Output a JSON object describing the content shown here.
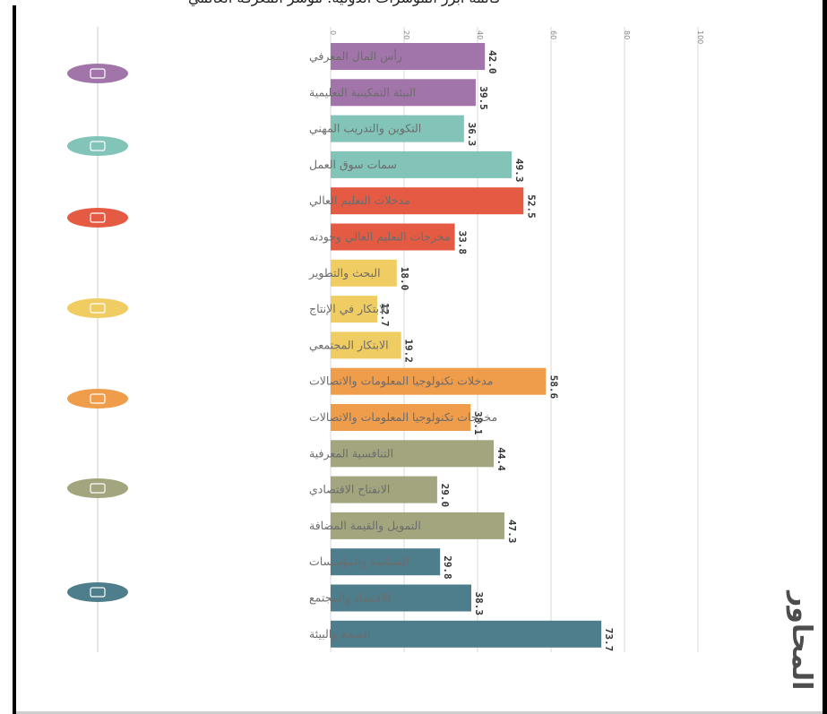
{
  "page": {
    "section_title": "المحاور",
    "cropped_heading": "قائمة أبرز المؤشرات الدولية: مؤشر المعرفة العالمي"
  },
  "colors": {
    "purple": "#a275aa",
    "teal": "#82c4b7",
    "red": "#e45a43",
    "yellow": "#f0cd62",
    "orange": "#ef9c4b",
    "olive": "#a3a57f",
    "steel": "#4e7e8c",
    "grid": "#d8d8d8",
    "axis": "#cccccc"
  },
  "chart_data": {
    "type": "bar",
    "orientation": "horizontal",
    "xlim": [
      0,
      100
    ],
    "ticks": [
      0,
      20,
      40,
      60,
      80,
      100
    ],
    "grid": true,
    "categories": [
      "رأس المال المعرفي",
      "البيئة التمكينية التعليمية",
      "التكوين والتدريب المهني",
      "سمات سوق العمل",
      "مدخلات التعليم العالي",
      "مخرجات التعليم العالي وجودته",
      "البحث والتطوير",
      "الابتكار في الإنتاج",
      "الابتكار المجتمعي",
      "مدخلات تكنولوجيا المعلومات والاتصالات",
      "مخرجات تكنولوجيا المعلومات والاتصالات",
      "التنافسية المعرفية",
      "الانفتاح الاقتصادي",
      "التمويل والقيمة المضافة",
      "السياسة والمؤسسات",
      "الاقتصاد والمجتمع",
      "الصحة والبيئة"
    ],
    "values": [
      42.0,
      39.5,
      36.3,
      49.3,
      52.5,
      33.8,
      18.0,
      12.7,
      19.2,
      58.6,
      38.1,
      44.4,
      29.0,
      47.3,
      29.8,
      38.3,
      73.7
    ],
    "value_labels": [
      "42.0",
      "39.5",
      "36.3",
      "49.3",
      "52.5",
      "33.8",
      "18.0",
      "12.7",
      "19.2",
      "58.6",
      "38.1",
      "44.4",
      "29.0",
      "47.3",
      "29.8",
      "38.3",
      "73.7"
    ],
    "bar_colors": [
      "purple",
      "purple",
      "teal",
      "teal",
      "red",
      "red",
      "yellow",
      "yellow",
      "yellow",
      "orange",
      "orange",
      "olive",
      "olive",
      "olive",
      "steel",
      "steel",
      "steel"
    ],
    "pillar_icons": [
      {
        "color": "purple",
        "icon": "book-icon"
      },
      {
        "color": "teal",
        "icon": "briefcase-icon"
      },
      {
        "color": "red",
        "icon": "graduation-icon"
      },
      {
        "color": "yellow",
        "icon": "lightbulb-icon"
      },
      {
        "color": "orange",
        "icon": "network-icon"
      },
      {
        "color": "olive",
        "icon": "globe-icon"
      },
      {
        "color": "steel",
        "icon": "handshake-icon"
      }
    ]
  }
}
